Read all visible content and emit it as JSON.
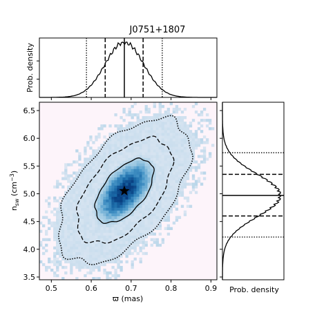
{
  "chart_data": {
    "type": "corner",
    "title": "J0751+1807",
    "joint": {
      "type": "heatmap",
      "xlabel": "ϖ (mas)",
      "ylabel_main": "n",
      "ylabel_sub": "sw",
      "ylabel_unit": " (cm",
      "ylabel_exp": "−3",
      "ylabel_close": ")",
      "xlim": [
        0.47,
        0.915
      ],
      "ylim": [
        3.45,
        6.65
      ],
      "xticks": [
        0.5,
        0.6,
        0.7,
        0.8,
        0.9
      ],
      "xtick_labels": [
        "0.5",
        "0.6",
        "0.7",
        "0.8",
        "0.9"
      ],
      "yticks": [
        3.5,
        4.0,
        4.5,
        5.0,
        5.5,
        6.0,
        6.5
      ],
      "ytick_labels": [
        "3.5",
        "4.0",
        "4.5",
        "5.0",
        "5.5",
        "6.0",
        "6.5"
      ],
      "mean_x": 0.683,
      "mean_y": 5.05,
      "sigma_x": 0.048,
      "sigma_y": 0.38,
      "correlation": 0.55,
      "contour_levels_sigma": [
        1,
        2,
        3
      ],
      "contour_styles": [
        "solid",
        "dashed",
        "dotted"
      ],
      "marker": {
        "x": 0.683,
        "y": 5.05,
        "symbol": "star"
      },
      "cmap": [
        "#fdf4fa",
        "#d7e4f1",
        "#9ec9e2",
        "#4a98c9",
        "#1a6aa8",
        "#083d7f"
      ]
    },
    "marginal_x": {
      "type": "line",
      "ylabel": "Prob. density",
      "median": 0.683,
      "lines_1sigma": [
        0.635,
        0.73
      ],
      "lines_2sigma": [
        0.588,
        0.778
      ]
    },
    "marginal_y": {
      "type": "line",
      "xlabel": "Prob. density",
      "median": 4.97,
      "lines_1sigma": [
        4.6,
        5.35
      ],
      "lines_2sigma": [
        4.22,
        5.74
      ]
    }
  }
}
